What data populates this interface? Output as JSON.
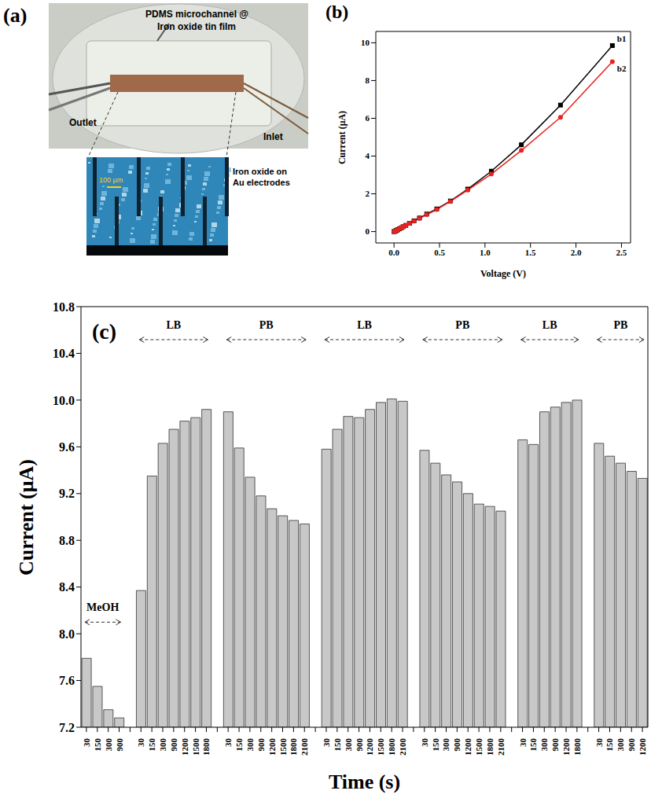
{
  "chart_data": [
    {
      "type": "image",
      "panel": "(a)",
      "photo_caption": [
        "PDMS microchannel @",
        "Iron oxide tin film"
      ],
      "outlet": "Outlet",
      "inlet": "Inlet",
      "inset_caption": [
        "Iron oxide on",
        "Au electrodes"
      ],
      "scale_bar": "100 μm"
    },
    {
      "type": "line",
      "panel": "(b)",
      "x_label": "Voltage (V)",
      "y_label": "Current (μA)",
      "xlim": [
        -0.2,
        2.6
      ],
      "xticks": [
        {
          "value": 0,
          "label": "0.0"
        },
        0.5,
        {
          "value": 1,
          "label": "1.0"
        },
        1.5,
        {
          "value": 2,
          "label": "2.0"
        },
        2.5
      ],
      "ylim": [
        -0.6,
        10.6
      ],
      "yticks": [
        0,
        2,
        4,
        6,
        8,
        10
      ],
      "x": [
        0,
        0.01,
        0.02,
        0.03,
        0.04,
        0.06,
        0.08,
        0.1,
        0.13,
        0.17,
        0.22,
        0.28,
        0.36,
        0.47,
        0.62,
        0.81,
        1.07,
        1.4,
        1.83,
        2.4
      ],
      "series": [
        {
          "name": "b1",
          "color": "#000000",
          "marker": "square",
          "values": [
            0,
            0.02,
            0.04,
            0.07,
            0.1,
            0.15,
            0.2,
            0.26,
            0.33,
            0.44,
            0.57,
            0.72,
            0.93,
            1.2,
            1.62,
            2.25,
            3.2,
            4.6,
            6.7,
            9.85
          ]
        },
        {
          "name": "b2",
          "color": "#e8231f",
          "marker": "circle",
          "values": [
            0,
            0.02,
            0.04,
            0.07,
            0.1,
            0.15,
            0.2,
            0.26,
            0.33,
            0.44,
            0.56,
            0.7,
            0.9,
            1.17,
            1.6,
            2.2,
            3.05,
            4.3,
            6.05,
            9.0
          ]
        }
      ]
    },
    {
      "type": "bar",
      "panel": "(c)",
      "x_label": "Time (s)",
      "y_label": "Current (μA)",
      "color": "#c8c8c8",
      "ylim": [
        7.2,
        10.8
      ],
      "yticks": [
        7.2,
        7.6,
        {
          "value": 8,
          "label": "8.0"
        },
        8.4,
        8.8,
        9.2,
        9.6,
        {
          "value": 10,
          "label": "10.0"
        },
        10.4,
        10.8
      ],
      "categories": [
        "30",
        "150",
        "300",
        "900",
        null,
        "30",
        "150",
        "300",
        "900",
        "1200",
        "1500",
        "1800",
        null,
        "30",
        "150",
        "300",
        "900",
        "1200",
        "1500",
        "1800",
        "2100",
        null,
        "30",
        "150",
        "300",
        "900",
        "1200",
        "1500",
        "1800",
        "2100",
        null,
        "30",
        "150",
        "300",
        "900",
        "1200",
        "1500",
        "1800",
        "2100",
        null,
        "30",
        "150",
        "300",
        "900",
        "1200",
        "1800",
        null,
        "30",
        "150",
        "300",
        "900",
        "1200"
      ],
      "values": [
        7.79,
        7.55,
        7.35,
        7.28,
        null,
        8.37,
        9.35,
        9.63,
        9.75,
        9.82,
        9.85,
        9.92,
        null,
        9.9,
        9.59,
        9.34,
        9.18,
        9.07,
        9.01,
        8.97,
        8.94,
        null,
        9.58,
        9.75,
        9.86,
        9.85,
        9.92,
        9.98,
        10.01,
        9.99,
        null,
        9.57,
        9.46,
        9.36,
        9.3,
        9.2,
        9.11,
        9.09,
        9.05,
        null,
        9.66,
        9.62,
        9.9,
        9.94,
        9.98,
        10.0,
        null,
        9.63,
        9.52,
        9.46,
        9.39,
        9.33
      ],
      "annotations": [
        {
          "text": "MeOH",
          "from": 0,
          "to": 3
        },
        {
          "text": "LB",
          "from": 5,
          "to": 11
        },
        {
          "text": "PB",
          "from": 13,
          "to": 20
        },
        {
          "text": "LB",
          "from": 22,
          "to": 29
        },
        {
          "text": "PB",
          "from": 31,
          "to": 38
        },
        {
          "text": "LB",
          "from": 40,
          "to": 45
        },
        {
          "text": "PB",
          "from": 47,
          "to": 51
        }
      ]
    }
  ]
}
